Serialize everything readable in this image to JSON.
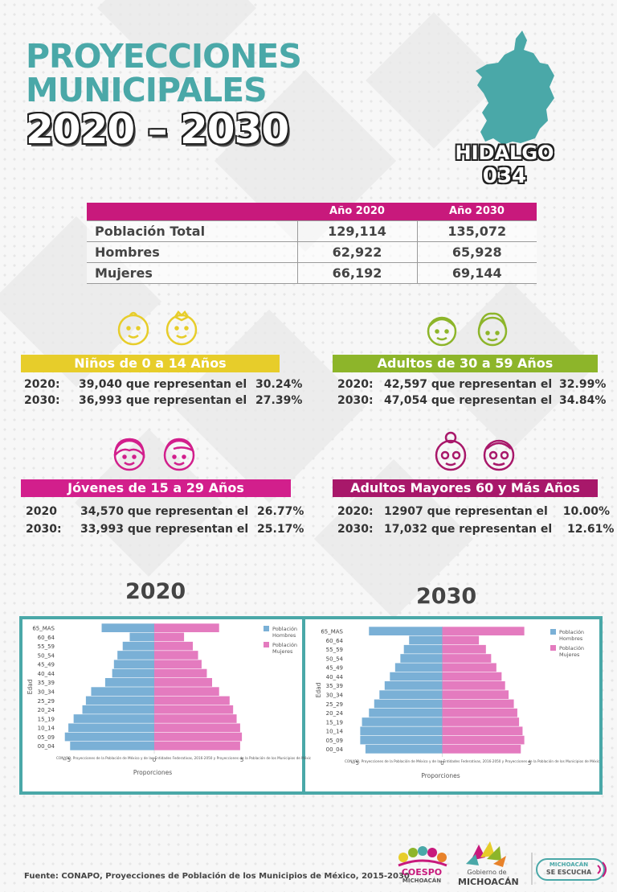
{
  "header": {
    "title_line1": "PROYECCIONES",
    "title_line2": "MUNICIPALES",
    "title_line3": "2020 – 2030"
  },
  "municipality": {
    "name": "HIDALGO",
    "code": "034"
  },
  "table": {
    "columns": [
      "Año 2020",
      "Año 2030"
    ],
    "rows": [
      {
        "label": "Población Total",
        "v2020": "129,114",
        "v2030": "135,072"
      },
      {
        "label": "Hombres",
        "v2020": "62,922",
        "v2030": "65,928"
      },
      {
        "label": "Mujeres",
        "v2020": "66,192",
        "v2030": "69,144"
      }
    ]
  },
  "groups": {
    "ninos": {
      "title": "Niños de 0 a 14 Años",
      "color": "#e7cd2a",
      "r2020": {
        "year": "2020:",
        "value": "39,040",
        "text": "que representan el",
        "pct": "30.24%"
      },
      "r2030": {
        "year": "2030:",
        "value": "36,993",
        "text": "que representan el",
        "pct": "27.39%"
      }
    },
    "adultos": {
      "title": "Adultos de 30 a 59 Años",
      "color": "#8db52a",
      "r2020": {
        "year": "2020:",
        "value": "42,597",
        "text": "que representan el",
        "pct": "32.99%"
      },
      "r2030": {
        "year": "2030:",
        "value": "47,054",
        "text": "que representan el",
        "pct": "34.84%"
      }
    },
    "jovenes": {
      "title": "Jóvenes de 15 a 29 Años",
      "color": "#d21f8c",
      "r2020": {
        "year": "2020",
        "value": "34,570",
        "text": "que representan el",
        "pct": "26.77%"
      },
      "r2030": {
        "year": "2030:",
        "value": "33,993",
        "text": "que representan el",
        "pct": "25.17%"
      }
    },
    "mayores": {
      "title": "Adultos Mayores  60 y Más Años",
      "color": "#a8186a",
      "r2020": {
        "year": "2020:",
        "value": "12907",
        "text": "que representan el",
        "pct": "10.00%"
      },
      "r2030": {
        "year": "2030:",
        "value": "17,032",
        "text": "que representan el",
        "pct": "12.61%"
      }
    }
  },
  "chart_data": [
    {
      "type": "bar",
      "orientation": "horizontal",
      "title": "2020",
      "xlabel": "Proporciones",
      "ylabel": "Edad",
      "xlim": [
        -5.5,
        5.5
      ],
      "xticks": [
        "−5",
        "0",
        "5"
      ],
      "categories": [
        "00_04",
        "05_09",
        "10_14",
        "15_19",
        "20_24",
        "25_29",
        "30_34",
        "35_39",
        "40_44",
        "45_49",
        "50_54",
        "55_59",
        "60_64",
        "65_MAS"
      ],
      "series": [
        {
          "name": "Población Hombres",
          "color": "#7ab0d6",
          "values": [
            -4.8,
            -5.1,
            -4.9,
            -4.6,
            -4.1,
            -3.9,
            -3.6,
            -2.8,
            -2.4,
            -2.3,
            -2.1,
            -1.8,
            -1.4,
            -3.0
          ]
        },
        {
          "name": "Población Mujeres",
          "color": "#e47bbf",
          "values": [
            4.9,
            5.0,
            4.9,
            4.7,
            4.5,
            4.3,
            3.7,
            3.3,
            3.0,
            2.7,
            2.5,
            2.2,
            1.7,
            3.7
          ]
        }
      ],
      "legend": [
        "Población Hombres",
        "Población Mujeres"
      ],
      "source_note": "CONAPO, Proyecciones de la Población de México y de las Entidades Federativas, 2016-2050 y Proyecciones de la Población de los Municipios de Méxic"
    },
    {
      "type": "bar",
      "orientation": "horizontal",
      "title": "2030",
      "xlabel": "Proporciones",
      "ylabel": "Edad",
      "xlim": [
        -5.5,
        5.5
      ],
      "xticks": [
        "−5",
        "0",
        "5"
      ],
      "categories": [
        "00_04",
        "05_09",
        "10_14",
        "15_19",
        "20_24",
        "25_29",
        "30_34",
        "35_39",
        "40_44",
        "45_49",
        "50_54",
        "55_59",
        "60_64",
        "65_MAS"
      ],
      "series": [
        {
          "name": "Población Hombres",
          "color": "#7ab0d6",
          "values": [
            -4.4,
            -4.7,
            -4.7,
            -4.6,
            -4.2,
            -3.9,
            -3.6,
            -3.3,
            -3.0,
            -2.7,
            -2.4,
            -2.2,
            -1.9,
            -4.2
          ]
        },
        {
          "name": "Población Mujeres",
          "color": "#e47bbf",
          "values": [
            4.5,
            4.7,
            4.6,
            4.4,
            4.3,
            4.1,
            3.8,
            3.6,
            3.4,
            3.1,
            2.8,
            2.5,
            2.1,
            4.7
          ]
        }
      ],
      "legend": [
        "Población Hombres",
        "Población Mujeres"
      ],
      "source_note": "CONAPO, Proyecciones de la Población de México y de las Entidades Federativas, 2016-2050 y Proyecciones de la Población de los Municipios de Méxic"
    }
  ],
  "footer": {
    "source": "Fuente: CONAPO, Proyecciones de Población de los Municipios de México, 2015-2030",
    "logo1_line1": "COESPO",
    "logo1_line2": "MICHOACÁN",
    "logo2_line1": "Gobierno de",
    "logo2_line2": "MICHOACÁN",
    "logo3_line1": "MICHOACÁN",
    "logo3_line2": "SE ESCUCHA"
  },
  "colors": {
    "teal": "#4aa8a8",
    "magenta": "#c8197c"
  }
}
